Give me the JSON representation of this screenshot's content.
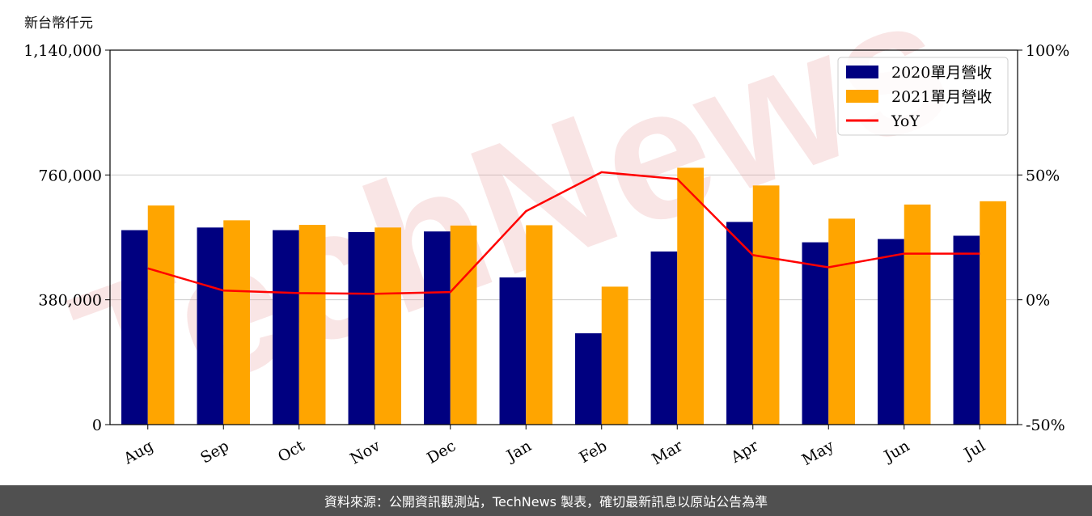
{
  "chart_data": {
    "type": "bar",
    "unit_label": "新台幣仟元",
    "categories": [
      "Aug",
      "Sep",
      "Oct",
      "Nov",
      "Dec",
      "Jan",
      "Feb",
      "Mar",
      "Apr",
      "May",
      "Jun",
      "Jul"
    ],
    "series": [
      {
        "name": "2020單月營收",
        "color": "#000080",
        "values": [
          592000,
          600000,
          592000,
          586000,
          588000,
          448000,
          278000,
          527000,
          617000,
          555000,
          565000,
          575000
        ]
      },
      {
        "name": "2021單月營收",
        "color": "#FFA500",
        "values": [
          667000,
          622000,
          608000,
          600000,
          606000,
          607000,
          420000,
          782000,
          728000,
          627000,
          670000,
          680000
        ]
      }
    ],
    "line_series": {
      "name": "YoY",
      "color": "#FF0000",
      "axis": "right",
      "values": [
        12.6,
        3.7,
        2.7,
        2.4,
        3.1,
        35.5,
        51.1,
        48.4,
        17.9,
        13.0,
        18.5,
        18.5
      ]
    },
    "y_left": {
      "lim": [
        0,
        1140000
      ],
      "ticks": [
        0,
        380000,
        760000,
        1140000
      ],
      "tick_labels": [
        "0",
        "380,000",
        "760,000",
        "1,140,000"
      ]
    },
    "y_right": {
      "lim": [
        -50,
        100
      ],
      "ticks": [
        -50,
        0,
        50,
        100
      ],
      "tick_labels": [
        "-50%",
        "0%",
        "50%",
        "100%"
      ]
    },
    "grid": "horizontal",
    "legend_position": "top-right",
    "watermark": "TechNews"
  },
  "footer": {
    "source": "資料來源：公開資訊觀測站，TechNews 製表，確切最新訊息以原站公告為準"
  }
}
